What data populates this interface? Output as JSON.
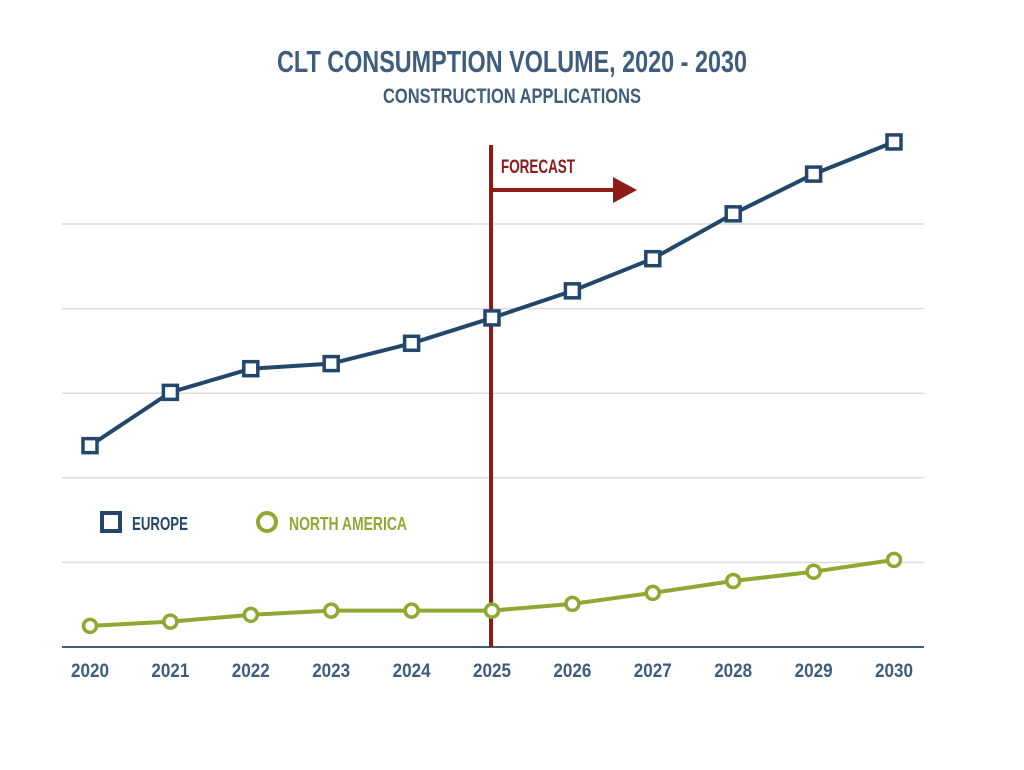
{
  "chart_data": {
    "type": "line",
    "title": "CLT CONSUMPTION VOLUME, 2020 - 2030",
    "subtitle": "CONSTRUCTION APPLICATIONS",
    "xlabel": "",
    "ylabel": "",
    "categories": [
      "2020",
      "2021",
      "2022",
      "2023",
      "2024",
      "2025",
      "2026",
      "2027",
      "2028",
      "2029",
      "2030"
    ],
    "ylim": [
      0,
      6
    ],
    "y_tick_labels_shown": false,
    "grid": true,
    "legend_placement": "lower-left",
    "annotation": {
      "label": "FORECAST",
      "at": "2025",
      "color": "#8e1a1a"
    },
    "series": [
      {
        "name": "EUROPE",
        "marker": "square",
        "color": "#22476b",
        "values": [
          2.38,
          3.01,
          3.29,
          3.35,
          3.59,
          3.89,
          4.21,
          4.59,
          5.12,
          5.59,
          5.97
        ]
      },
      {
        "name": "NORTH AMERICA",
        "marker": "circle",
        "color": "#8fa832",
        "values": [
          0.25,
          0.3,
          0.38,
          0.43,
          0.43,
          0.43,
          0.51,
          0.64,
          0.78,
          0.89,
          1.03
        ]
      }
    ]
  }
}
